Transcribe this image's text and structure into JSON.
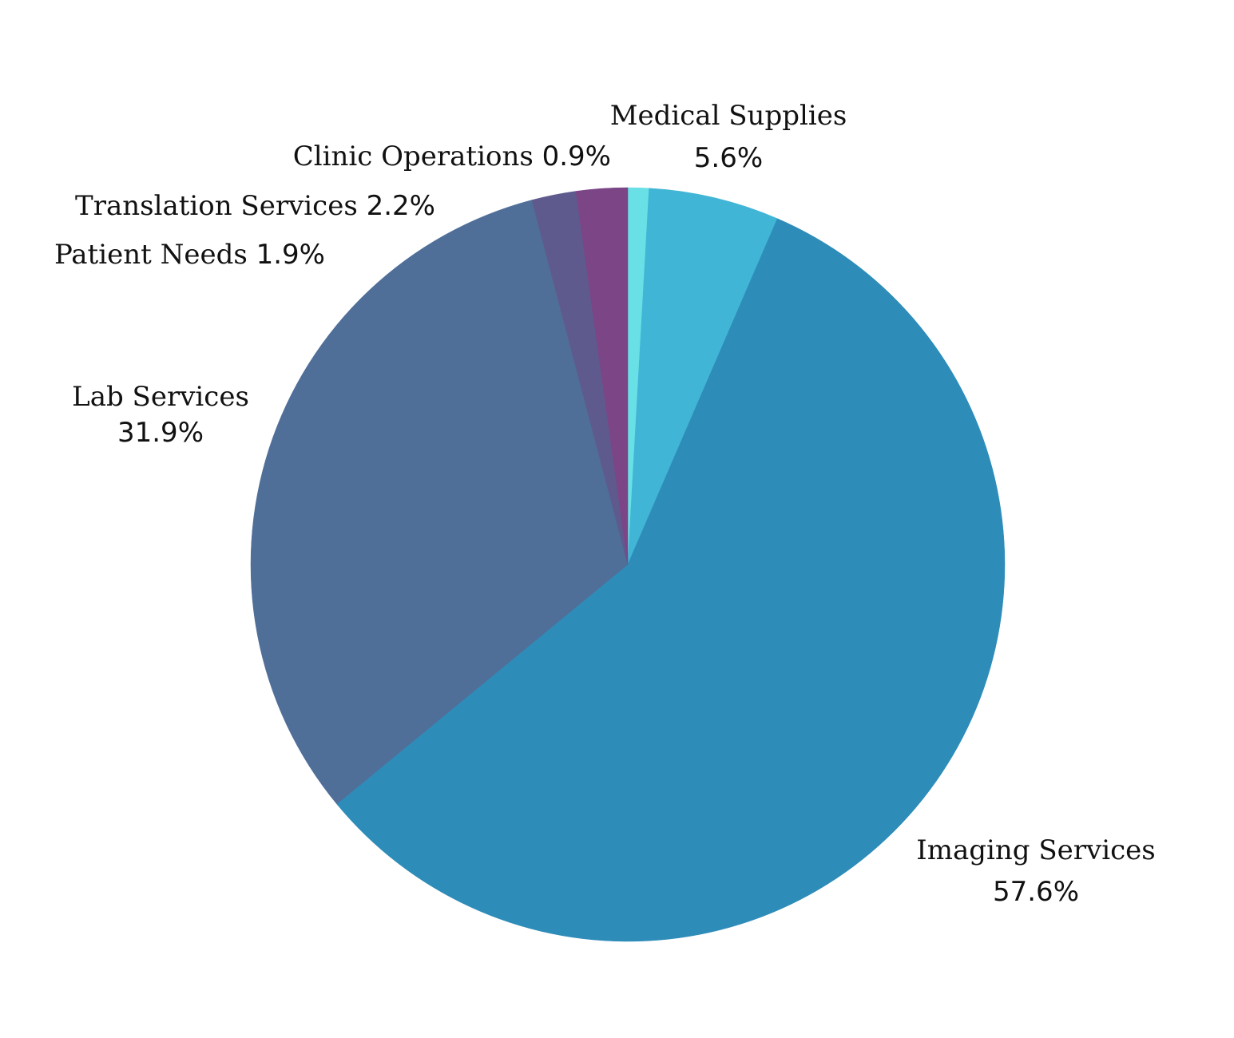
{
  "chart_data": {
    "type": "pie",
    "start_angle_deg": 90,
    "direction": "clockwise",
    "slices": [
      {
        "label": "Clinic Operations",
        "value": 0.9,
        "percent_text": "0.9%",
        "color": "#69e0e6"
      },
      {
        "label": "Medical Supplies",
        "value": 5.6,
        "percent_text": "5.6%",
        "color": "#41b5d6"
      },
      {
        "label": "Imaging Services",
        "value": 57.6,
        "percent_text": "57.6%",
        "color": "#2e8cb9"
      },
      {
        "label": "Lab Services",
        "value": 31.9,
        "percent_text": "31.9%",
        "color": "#4f6e98"
      },
      {
        "label": "Patient Needs",
        "value": 1.9,
        "percent_text": "1.9%",
        "color": "#5f5a8e"
      },
      {
        "label": "Translation Services",
        "value": 2.2,
        "percent_text": "2.2%",
        "color": "#7b4586"
      }
    ]
  }
}
